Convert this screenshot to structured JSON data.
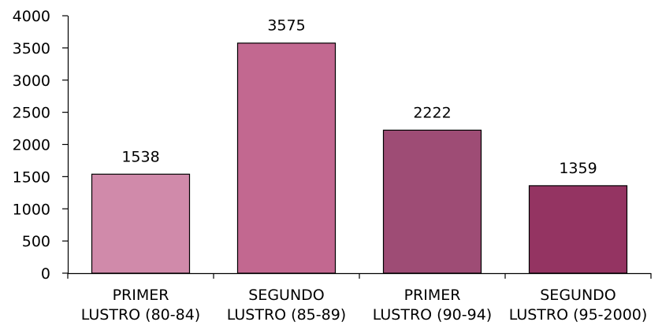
{
  "chart_data": {
    "type": "bar",
    "title": "",
    "xlabel": "",
    "ylabel": "",
    "ylim": [
      0,
      4000
    ],
    "yticks": [
      0,
      500,
      1000,
      1500,
      2000,
      2500,
      3000,
      3500,
      4000
    ],
    "ytick_labels": [
      "0",
      "500",
      "1000",
      "1500",
      "2000",
      "2500",
      "3000",
      "3500",
      "4000"
    ],
    "grid": false,
    "legend": "none",
    "categories": [
      [
        "PRIMER",
        "LUSTRO (80-84)"
      ],
      [
        "SEGUNDO",
        "LUSTRO (85-89)"
      ],
      [
        "PRIMER",
        "LUSTRO (90-94)"
      ],
      [
        "SEGUNDO",
        "LUSTRO (95-2000)"
      ]
    ],
    "values": [
      1538,
      3575,
      2222,
      1359
    ],
    "value_labels": [
      "1538",
      "3575",
      "2222",
      "1359"
    ],
    "bar_colors": [
      "#d08aaa",
      "#c26890",
      "#9e4c75",
      "#943462"
    ]
  }
}
